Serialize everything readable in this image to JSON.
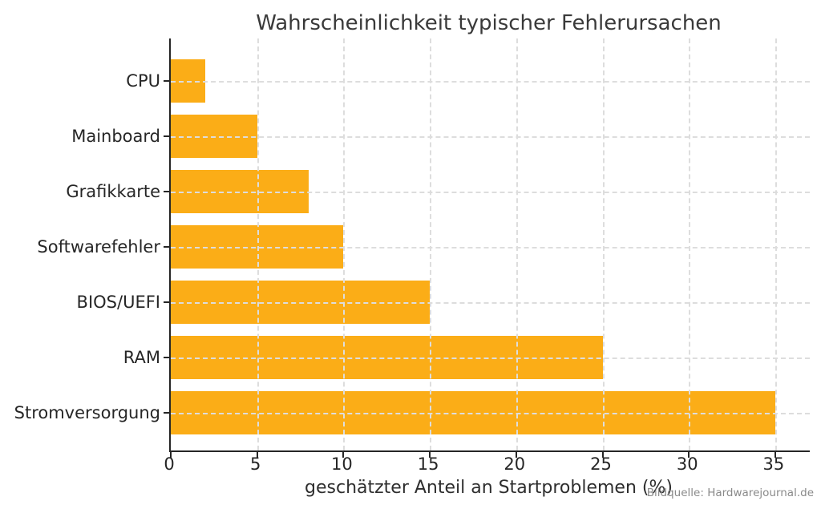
{
  "chart_data": {
    "type": "bar",
    "orientation": "horizontal",
    "title": "Wahrscheinlichkeit typischer Fehlerursachen",
    "xlabel": "geschätzter Anteil an Startproblemen (%)",
    "ylabel": "",
    "categories": [
      "CPU",
      "Mainboard",
      "Grafikkarte",
      "Softwarefehler",
      "BIOS/UEFI",
      "RAM",
      "Stromversorgung"
    ],
    "values": [
      2,
      5,
      8,
      10,
      15,
      25,
      35
    ],
    "xticks": [
      0,
      5,
      10,
      15,
      20,
      25,
      30,
      35
    ],
    "xlim": [
      0,
      37
    ],
    "grid": true,
    "grid_style": "dashed",
    "legend": "none",
    "bar_color": "#FBAD17",
    "axis_color": "#262626",
    "grid_color": "#dddddd",
    "annotation": "Bildquelle: Hardwarejournal.de"
  }
}
